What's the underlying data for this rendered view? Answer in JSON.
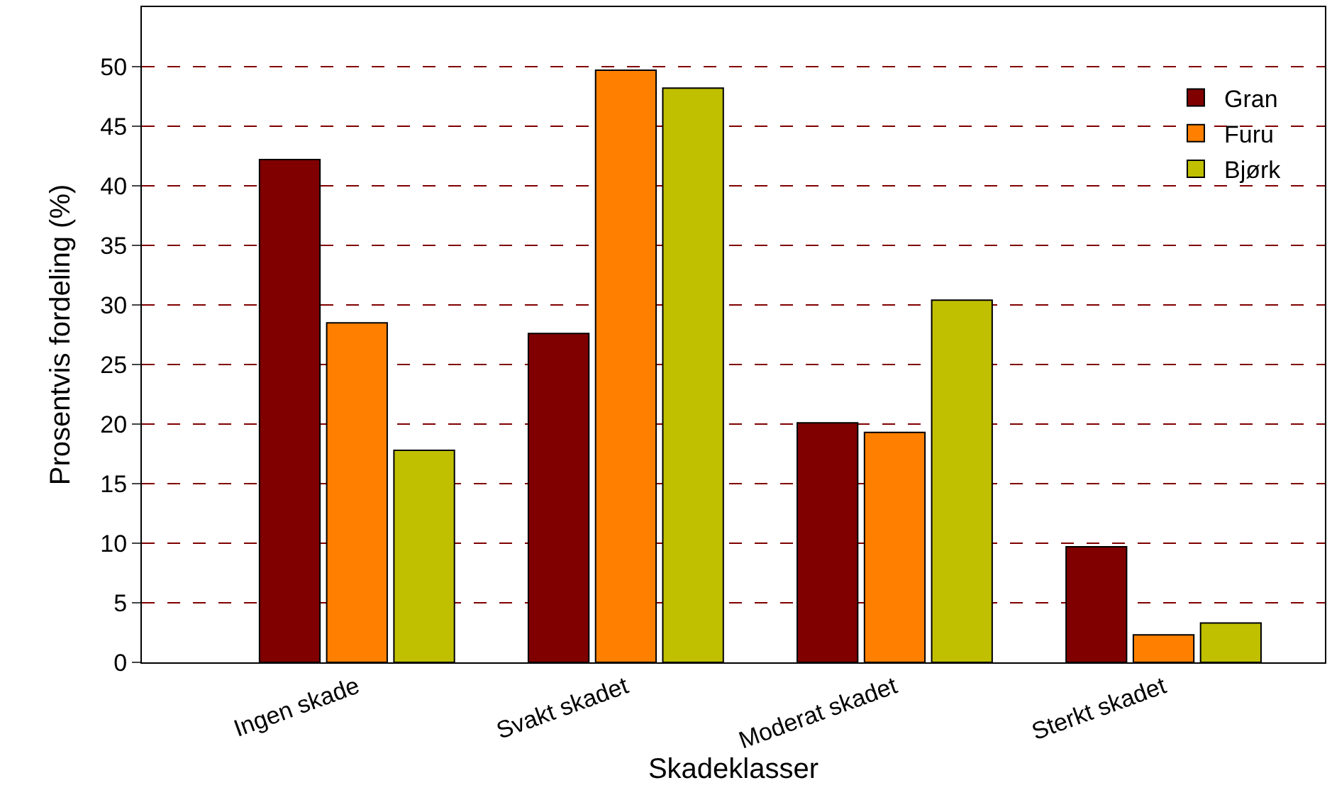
{
  "chart_data": {
    "type": "bar",
    "xlabel": "Skadeklasser",
    "ylabel": "Prosentvis fordeling (%)",
    "categories": [
      "Ingen skade",
      "Svakt skadet",
      "Moderat skadet",
      "Sterkt skadet"
    ],
    "series": [
      {
        "name": "Gran",
        "color": "#800000",
        "values": [
          42.2,
          27.6,
          20.1,
          9.7
        ]
      },
      {
        "name": "Furu",
        "color": "#ff8000",
        "values": [
          28.5,
          49.7,
          19.3,
          2.3
        ]
      },
      {
        "name": "Bjørk",
        "color": "#c0c000",
        "values": [
          17.8,
          48.2,
          30.4,
          3.3
        ]
      }
    ],
    "ylim": [
      0,
      55
    ],
    "yticks": [
      0,
      5,
      10,
      15,
      20,
      25,
      30,
      35,
      40,
      45,
      50
    ],
    "grid": "y",
    "legend": "top right"
  }
}
